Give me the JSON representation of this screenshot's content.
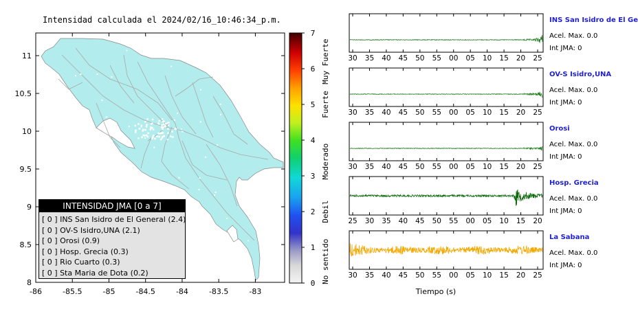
{
  "map": {
    "title": "Intensidad calculada el 2024/02/16_10:46:34_p.m.",
    "x_ticks": [
      "-86",
      "-85.5",
      "-85",
      "-84.5",
      "-84",
      "-83.5",
      "-83"
    ],
    "y_ticks": [
      "11",
      "10.5",
      "10",
      "9.5",
      "9",
      "8.5",
      "8"
    ],
    "land_color": "#b2ecec"
  },
  "colorbar": {
    "ticks": [
      "7",
      "6",
      "5",
      "4",
      "3",
      "2",
      "1",
      "0"
    ],
    "labels": [
      "Muy Fuerte",
      "Fuerte",
      "Moderado",
      "Debil",
      "No sentido"
    ]
  },
  "legend": {
    "title": "INTENSIDAD JMA [0 a 7]",
    "rows": [
      "[ 0 ]  INS San Isidro de El General (2.4)",
      "[ 0 ]  OV-S Isidro,UNA (2.1)",
      "[ 0 ]  Orosi (0.9)",
      "[ 0 ]  Hosp. Grecia (0.3)",
      "[ 0 ]  Rio Cuarto (0.3)",
      "[ 0 ]  Sta Maria de Dota (0.2)"
    ]
  },
  "stations": [
    {
      "name": "INS San Isidro de El Ge",
      "acel": "Acel. Max. 0.0",
      "int": "Int JMA: 0",
      "ticks": [
        "30",
        "35",
        "40",
        "45",
        "50",
        "55",
        "00",
        "05",
        "10",
        "15",
        "20",
        "25"
      ],
      "color": "#1a7a1a",
      "burst": "end",
      "amp": 0.8
    },
    {
      "name": "OV-S Isidro,UNA",
      "acel": "Acel. Max. 0.0",
      "int": "Int JMA: 0",
      "ticks": [
        "30",
        "35",
        "40",
        "45",
        "50",
        "55",
        "00",
        "05",
        "10",
        "15",
        "20",
        "25"
      ],
      "color": "#1a7a1a",
      "burst": "end",
      "amp": 0.6
    },
    {
      "name": "Orosi",
      "acel": "Acel. Max. 0.0",
      "int": "Int JMA: 0",
      "ticks": [
        "30",
        "35",
        "40",
        "45",
        "50",
        "55",
        "00",
        "05",
        "10",
        "15",
        "20",
        "25"
      ],
      "color": "#1a7a1a",
      "burst": "end",
      "amp": 0.3
    },
    {
      "name": "Hosp. Grecia",
      "acel": "Acel. Max. 0.0",
      "int": "Int JMA: 0",
      "ticks": [
        "25",
        "30",
        "35",
        "40",
        "45",
        "50",
        "55",
        "00",
        "05",
        "10",
        "15",
        "20"
      ],
      "color": "#0d6b0d",
      "burst": "late",
      "amp": 0.5
    },
    {
      "name": "La Sabana",
      "acel": "Acel. Max. 0.0",
      "int": "Int JMA: 0",
      "ticks": [
        "30",
        "35",
        "40",
        "45",
        "50",
        "55",
        "00",
        "05",
        "10",
        "15",
        "20",
        "25"
      ],
      "color": "#f5a800",
      "burst": "start",
      "amp": 0.7
    }
  ],
  "waveform_xlabel": "Tiempo (s)",
  "chart_data": [
    {
      "type": "scatter",
      "title": "Intensidad calculada el 2024/02/16_10:46:34_p.m.",
      "xlim": [
        -86,
        -82.6
      ],
      "ylim": [
        8,
        11.3
      ],
      "x_ticks": [
        -86,
        -85.5,
        -85,
        -84.5,
        -84,
        -83.5,
        -83
      ],
      "y_ticks": [
        8,
        8.5,
        9,
        9.5,
        10,
        10.5,
        11
      ]
    },
    {
      "type": "heatmap",
      "range": [
        0,
        7
      ],
      "labels": [
        "Muy Fuerte",
        "Fuerte",
        "Moderado",
        "Debil",
        "No sentido"
      ]
    },
    {
      "type": "line",
      "xlabel": "Tiempo (s)",
      "series": [
        {
          "name": "INS San Isidro de El Ge"
        },
        {
          "name": "OV-S Isidro,UNA"
        },
        {
          "name": "Orosi"
        },
        {
          "name": "Hosp. Grecia"
        },
        {
          "name": "La Sabana"
        }
      ]
    }
  ]
}
